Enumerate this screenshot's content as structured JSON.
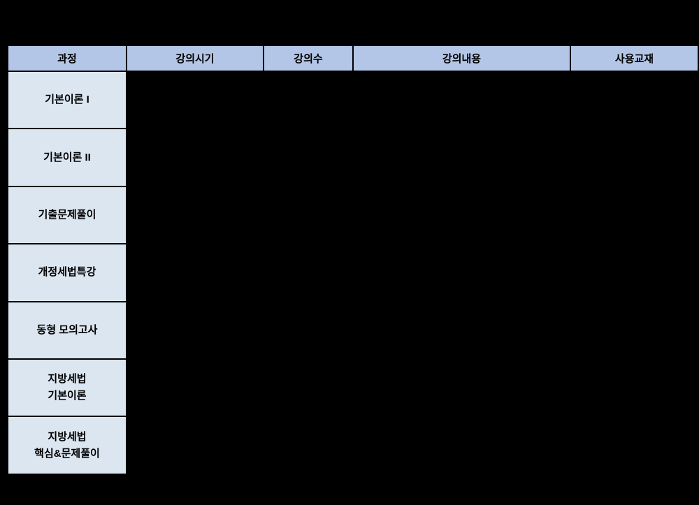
{
  "page": {
    "background_color": "#000000"
  },
  "table": {
    "colors": {
      "header_bg": "#b4c6e7",
      "course_bg": "#dce6f1",
      "border": "#000000",
      "text": "#000000"
    },
    "headers": [
      "과정",
      "강의시기",
      "강의수",
      "강의내용",
      "사용교재"
    ],
    "rows": [
      {
        "course": "기본이론 I"
      },
      {
        "course": "기본이론 II"
      },
      {
        "course": "기출문제풀이"
      },
      {
        "course": "개정세법특강"
      },
      {
        "course": "동형 모의고사"
      },
      {
        "course": "지방세법\n기본이론"
      },
      {
        "course": "지방세법\n핵심&문제풀이"
      }
    ]
  }
}
